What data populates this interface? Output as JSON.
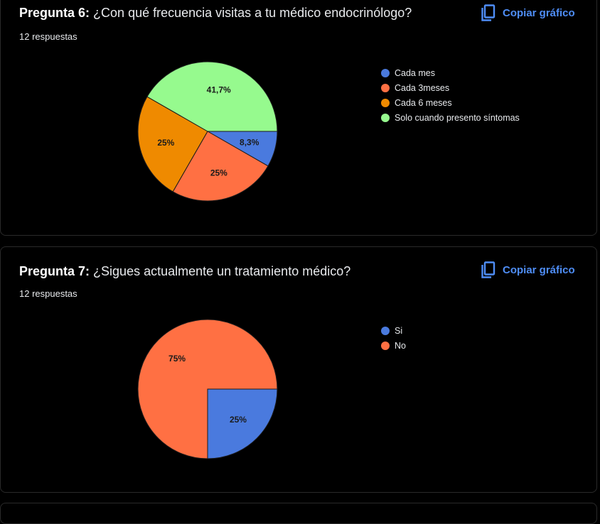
{
  "copy_label": "Copiar gráfico",
  "chart_data": [
    {
      "type": "pie",
      "title_prefix": "Pregunta 6:",
      "title": "¿Con qué frecuencia visitas a tu médico endocrinólogo?",
      "subtitle": "12 respuestas",
      "legend_position": "right",
      "slices": [
        {
          "label": "Cada mes",
          "value": 8.3,
          "display": "8,3%",
          "color": "#4a7ade"
        },
        {
          "label": "Cada 3meses",
          "value": 25,
          "display": "25%",
          "color": "#ff7043"
        },
        {
          "label": "Cada 6 meses",
          "value": 25,
          "display": "25%",
          "color": "#ef8a00"
        },
        {
          "label": "Solo cuando presento síntomas",
          "value": 41.7,
          "display": "41,7%",
          "color": "#96fa8e"
        }
      ]
    },
    {
      "type": "pie",
      "title_prefix": "Pregunta 7:",
      "title": "¿Sigues actualmente un tratamiento médico?",
      "subtitle": "12 respuestas",
      "legend_position": "right",
      "slices": [
        {
          "label": "Si",
          "value": 25,
          "display": "25%",
          "color": "#4a7ade"
        },
        {
          "label": "No",
          "value": 75,
          "display": "75%",
          "color": "#ff7043"
        }
      ]
    }
  ]
}
